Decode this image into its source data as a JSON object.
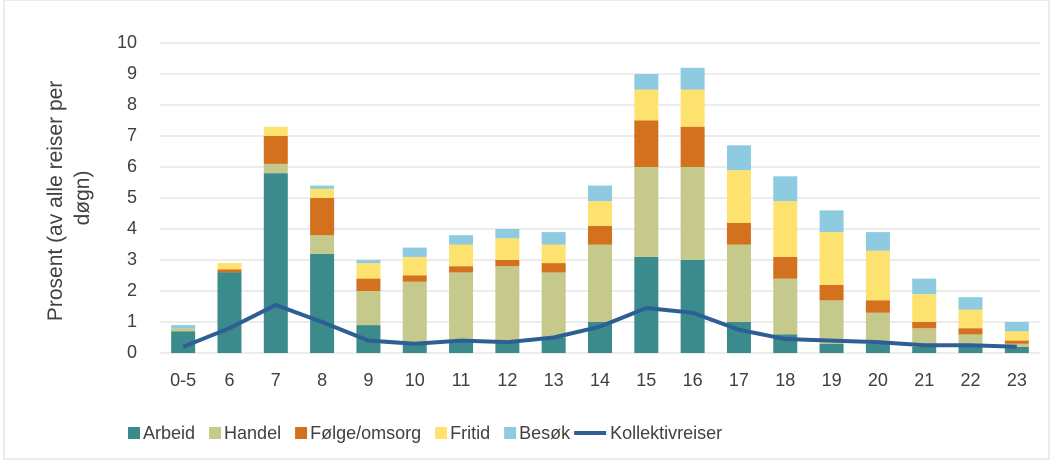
{
  "chart_data": {
    "type": "bar",
    "stacked": true,
    "ylabel": [
      "Prosent (av alle reiser per",
      "døgn)"
    ],
    "categories": [
      "0-5",
      "6",
      "7",
      "8",
      "9",
      "10",
      "11",
      "12",
      "13",
      "14",
      "15",
      "16",
      "17",
      "18",
      "19",
      "20",
      "21",
      "22",
      "23"
    ],
    "series": [
      {
        "name": "Arbeid",
        "color": "#3b8a8c",
        "values": [
          0.7,
          2.6,
          5.8,
          3.2,
          0.9,
          0.3,
          0.4,
          0.4,
          0.5,
          1.0,
          3.1,
          3.0,
          1.0,
          0.6,
          0.3,
          0.3,
          0.2,
          0.2,
          0.2
        ]
      },
      {
        "name": "Handel",
        "color": "#c6c98c",
        "values": [
          0.1,
          0,
          0.3,
          0.6,
          1.1,
          2.0,
          2.2,
          2.4,
          2.1,
          2.5,
          2.9,
          3.0,
          2.5,
          1.8,
          1.4,
          1.0,
          0.6,
          0.4,
          0.1
        ]
      },
      {
        "name": "Følge/omsorg",
        "color": "#d3711e",
        "values": [
          0,
          0.1,
          0.9,
          1.2,
          0.4,
          0.2,
          0.2,
          0.2,
          0.3,
          0.6,
          1.5,
          1.3,
          0.7,
          0.7,
          0.5,
          0.4,
          0.2,
          0.2,
          0.1
        ]
      },
      {
        "name": "Fritid",
        "color": "#fde270",
        "values": [
          0,
          0.2,
          0.3,
          0.3,
          0.5,
          0.6,
          0.7,
          0.7,
          0.6,
          0.8,
          1.0,
          1.2,
          1.7,
          1.8,
          1.7,
          1.6,
          0.9,
          0.6,
          0.3
        ]
      },
      {
        "name": "Besøk",
        "color": "#8ecbe0",
        "values": [
          0.1,
          0,
          0,
          0.1,
          0.1,
          0.3,
          0.3,
          0.3,
          0.4,
          0.5,
          0.5,
          0.7,
          0.8,
          0.8,
          0.7,
          0.6,
          0.5,
          0.4,
          0.3
        ]
      },
      {
        "name": "Kollektivreiser",
        "color": "#2e5f94",
        "type": "line",
        "values": [
          0.2,
          0.8,
          1.55,
          1.0,
          0.4,
          0.3,
          0.4,
          0.35,
          0.5,
          0.85,
          1.45,
          1.3,
          0.75,
          0.45,
          0.4,
          0.35,
          0.25,
          0.25,
          0.2
        ]
      }
    ],
    "ylim": [
      0,
      10
    ],
    "yticks": [
      0,
      1,
      2,
      3,
      4,
      5,
      6,
      7,
      8,
      9,
      10
    ],
    "grid": true,
    "legend": "bottom"
  }
}
